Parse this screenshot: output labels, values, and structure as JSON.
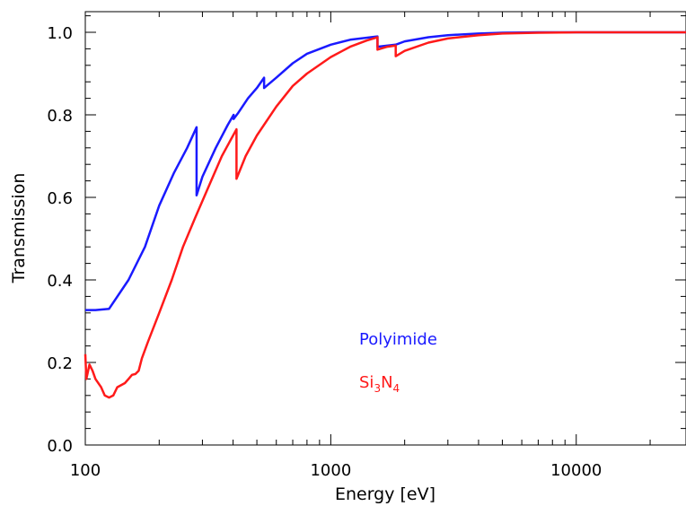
{
  "chart_data": {
    "type": "line",
    "title": "",
    "xlabel": "Energy [eV]",
    "ylabel": "Transmission",
    "xscale": "log",
    "xlim": [
      100,
      28000
    ],
    "ylim": [
      0.0,
      1.05
    ],
    "xticks": [
      100,
      1000,
      10000
    ],
    "xtick_labels": [
      "100",
      "1000",
      "10000"
    ],
    "yticks": [
      0.0,
      0.2,
      0.4,
      0.6,
      0.8,
      1.0
    ],
    "ytick_labels": [
      "0.0",
      "0.2",
      "0.4",
      "0.6",
      "0.8",
      "1.0"
    ],
    "grid": false,
    "legend_position": "center-right",
    "series": [
      {
        "name": "Polyimide",
        "color": "#1a1aff",
        "points": [
          [
            100,
            0.327
          ],
          [
            110,
            0.327
          ],
          [
            125,
            0.33
          ],
          [
            150,
            0.4
          ],
          [
            175,
            0.48
          ],
          [
            200,
            0.58
          ],
          [
            230,
            0.66
          ],
          [
            260,
            0.72
          ],
          [
            284,
            0.77
          ],
          [
            284,
            0.605
          ],
          [
            300,
            0.65
          ],
          [
            340,
            0.72
          ],
          [
            380,
            0.775
          ],
          [
            402,
            0.8
          ],
          [
            402,
            0.79
          ],
          [
            420,
            0.805
          ],
          [
            460,
            0.84
          ],
          [
            500,
            0.865
          ],
          [
            535,
            0.89
          ],
          [
            535,
            0.865
          ],
          [
            600,
            0.89
          ],
          [
            700,
            0.925
          ],
          [
            800,
            0.948
          ],
          [
            1000,
            0.97
          ],
          [
            1200,
            0.982
          ],
          [
            1550,
            0.99
          ],
          [
            1550,
            0.965
          ],
          [
            1839,
            0.97
          ],
          [
            2000,
            0.978
          ],
          [
            2500,
            0.988
          ],
          [
            3000,
            0.993
          ],
          [
            4000,
            0.997
          ],
          [
            5000,
            0.999
          ],
          [
            7000,
            1.0
          ],
          [
            28000,
            1.0
          ]
        ]
      },
      {
        "name": "Si3N4",
        "label_main": "Si",
        "label_sub1": "3",
        "label_mid": "N",
        "label_sub2": "4",
        "color": "#ff1a1a",
        "points": [
          [
            100,
            0.22
          ],
          [
            101,
            0.16
          ],
          [
            104,
            0.195
          ],
          [
            107,
            0.18
          ],
          [
            110,
            0.16
          ],
          [
            116,
            0.14
          ],
          [
            120,
            0.12
          ],
          [
            125,
            0.115
          ],
          [
            130,
            0.12
          ],
          [
            135,
            0.14
          ],
          [
            145,
            0.15
          ],
          [
            150,
            0.16
          ],
          [
            155,
            0.17
          ],
          [
            160,
            0.172
          ],
          [
            165,
            0.18
          ],
          [
            170,
            0.21
          ],
          [
            180,
            0.25
          ],
          [
            200,
            0.32
          ],
          [
            225,
            0.4
          ],
          [
            250,
            0.48
          ],
          [
            280,
            0.55
          ],
          [
            320,
            0.63
          ],
          [
            360,
            0.7
          ],
          [
            400,
            0.75
          ],
          [
            413,
            0.765
          ],
          [
            413,
            0.645
          ],
          [
            450,
            0.7
          ],
          [
            500,
            0.75
          ],
          [
            600,
            0.82
          ],
          [
            700,
            0.87
          ],
          [
            800,
            0.9
          ],
          [
            1000,
            0.94
          ],
          [
            1200,
            0.965
          ],
          [
            1400,
            0.98
          ],
          [
            1550,
            0.988
          ],
          [
            1550,
            0.958
          ],
          [
            1700,
            0.965
          ],
          [
            1839,
            0.968
          ],
          [
            1839,
            0.942
          ],
          [
            2000,
            0.955
          ],
          [
            2500,
            0.975
          ],
          [
            3000,
            0.985
          ],
          [
            4000,
            0.993
          ],
          [
            5000,
            0.997
          ],
          [
            7000,
            0.999
          ],
          [
            10000,
            1.0
          ],
          [
            28000,
            1.0
          ]
        ]
      }
    ]
  }
}
